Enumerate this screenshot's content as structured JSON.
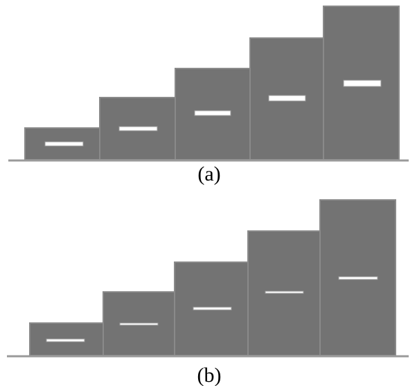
{
  "panels": [
    {
      "caption": "(a)",
      "steps": 5,
      "marker_labels": [
        "",
        "",
        "",
        "",
        ""
      ]
    },
    {
      "caption": "(b)",
      "steps": 5,
      "marker_labels": [
        "",
        "",
        "",
        "",
        ""
      ]
    }
  ],
  "colors": {
    "step_fill": "#737373",
    "step_stroke": "#8a8a8a",
    "baseline": "#9a9a9a",
    "marker_fill": "#ffffff",
    "marker_stroke": "#9a9a9a",
    "caption": "#000000"
  }
}
